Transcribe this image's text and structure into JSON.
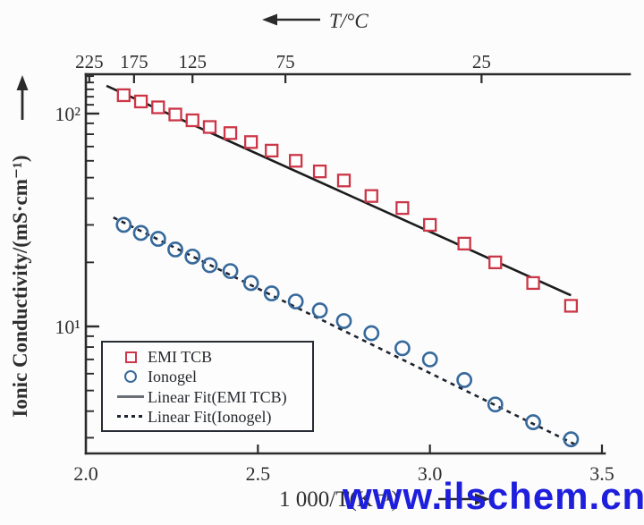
{
  "watermark": {
    "text": "www.ilschem.cn",
    "color": "#1e1edd"
  },
  "chart_data": {
    "type": "scatter",
    "title": "",
    "x_axis": {
      "label": "1 000/T(K⁻¹)",
      "min": 2.0,
      "max": 3.5,
      "ticks": [
        2.0,
        2.5,
        3.0,
        3.5
      ],
      "tick_labels": [
        "2.0",
        "2.5",
        "3.0",
        "3.5"
      ]
    },
    "top_axis": {
      "title": "T/°C",
      "ticks": [
        {
          "label": "225",
          "x": 2.01
        },
        {
          "label": "175",
          "x": 2.14
        },
        {
          "label": "125",
          "x": 2.31
        },
        {
          "label": "75",
          "x": 2.58
        },
        {
          "label": "25",
          "x": 3.15
        }
      ]
    },
    "y_axis": {
      "label": "Ionic Conductivity/(mS·cm⁻¹)",
      "scale": "log",
      "min": 2.5,
      "max": 153,
      "major_ticks": [
        {
          "label": "10²",
          "value": 100
        },
        {
          "label": "10¹",
          "value": 10
        }
      ],
      "minor_tick_values": [
        150,
        140,
        130,
        120,
        110,
        90,
        80,
        70,
        60,
        50,
        40,
        30,
        20,
        9,
        8,
        7,
        6,
        5,
        4,
        3
      ]
    },
    "series": [
      {
        "name": "EMI TCB",
        "marker": "square",
        "color": "#cc3647",
        "x": [
          2.11,
          2.16,
          2.21,
          2.26,
          2.31,
          2.36,
          2.42,
          2.48,
          2.54,
          2.61,
          2.68,
          2.75,
          2.83,
          2.92,
          3.0,
          3.1,
          3.19,
          3.3,
          3.41
        ],
        "y": [
          122,
          114,
          107,
          99,
          93,
          86.5,
          81,
          73.5,
          67,
          60,
          53.5,
          48.5,
          41,
          36,
          30,
          24.5,
          20,
          16,
          12.5
        ]
      },
      {
        "name": "Ionogel",
        "marker": "circle",
        "color": "#36699c",
        "x": [
          2.11,
          2.16,
          2.21,
          2.26,
          2.31,
          2.36,
          2.42,
          2.48,
          2.54,
          2.61,
          2.68,
          2.75,
          2.83,
          2.92,
          3.0,
          3.1,
          3.19,
          3.3,
          3.41
        ],
        "y": [
          30,
          27.5,
          25.8,
          23,
          21.3,
          19.4,
          18.2,
          16,
          14.3,
          13.1,
          11.9,
          10.6,
          9.3,
          7.9,
          7.0,
          5.6,
          4.3,
          3.55,
          2.95
        ]
      }
    ],
    "fits": [
      {
        "name": "Linear Fit(EMI TCB)",
        "style": "solid",
        "color": "#1c1c1c",
        "x1": 2.06,
        "y1": 135,
        "x2": 3.41,
        "y2": 14.0
      },
      {
        "name": "Linear Fit(Ionogel)",
        "style": "dashed",
        "color": "#1d2430",
        "x1": 2.08,
        "y1": 32.5,
        "x2": 3.43,
        "y2": 2.75
      }
    ],
    "legend": {
      "position": "lower left",
      "entries": [
        {
          "type": "square",
          "color": "#cc3647",
          "label": "EMI TCB"
        },
        {
          "type": "circle",
          "color": "#36699c",
          "label": "Ionogel"
        },
        {
          "type": "solid",
          "color": "#6a6f76",
          "label": "Linear Fit(EMI TCB)"
        },
        {
          "type": "dashed",
          "color": "#1d2430",
          "label": "Linear Fit(Ionogel)"
        }
      ]
    }
  }
}
